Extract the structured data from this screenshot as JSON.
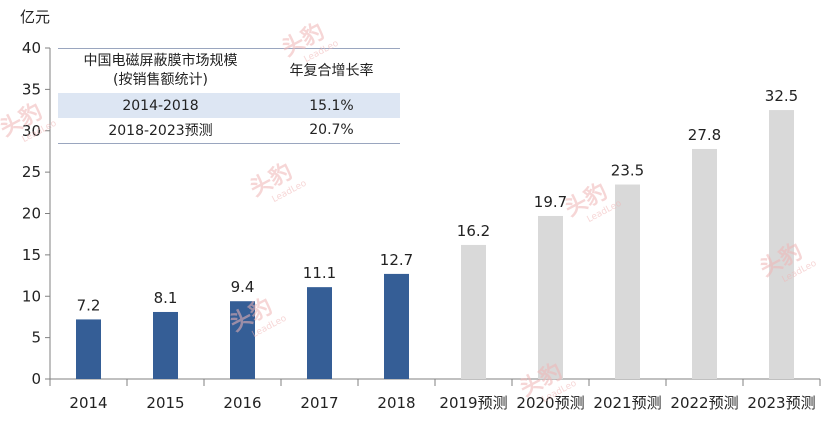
{
  "chart_data": {
    "type": "bar",
    "unit_label": "亿元",
    "categories": [
      "2014",
      "2015",
      "2016",
      "2017",
      "2018",
      "2019预测",
      "2020预测",
      "2021预测",
      "2022预测",
      "2023预测"
    ],
    "values": [
      7.2,
      8.1,
      9.4,
      11.1,
      12.7,
      16.2,
      19.7,
      23.5,
      27.8,
      32.5
    ],
    "value_labels": [
      "7.2",
      "8.1",
      "9.4",
      "11.1",
      "12.7",
      "16.2",
      "19.7",
      "23.5",
      "27.8",
      "32.5"
    ],
    "bar_colors": [
      "#355e96",
      "#355e96",
      "#355e96",
      "#355e96",
      "#355e96",
      "#d9d9d9",
      "#d9d9d9",
      "#d9d9d9",
      "#d9d9d9",
      "#d9d9d9"
    ],
    "ylim": [
      0,
      40
    ],
    "yticks": [
      0,
      5,
      10,
      15,
      20,
      25,
      30,
      35,
      40
    ],
    "grid": false
  },
  "table": {
    "header_col1_line1": "中国电磁屏蔽膜市场规模",
    "header_col1_line2": "(按销售额统计)",
    "header_col2": "年复合增长率",
    "rows": [
      {
        "period": "2014-2018",
        "cagr": "15.1%"
      },
      {
        "period": "2018-2023预测",
        "cagr": "20.7%"
      }
    ]
  },
  "watermark": {
    "brand": "头豹",
    "sub": "LeadLeo"
  }
}
